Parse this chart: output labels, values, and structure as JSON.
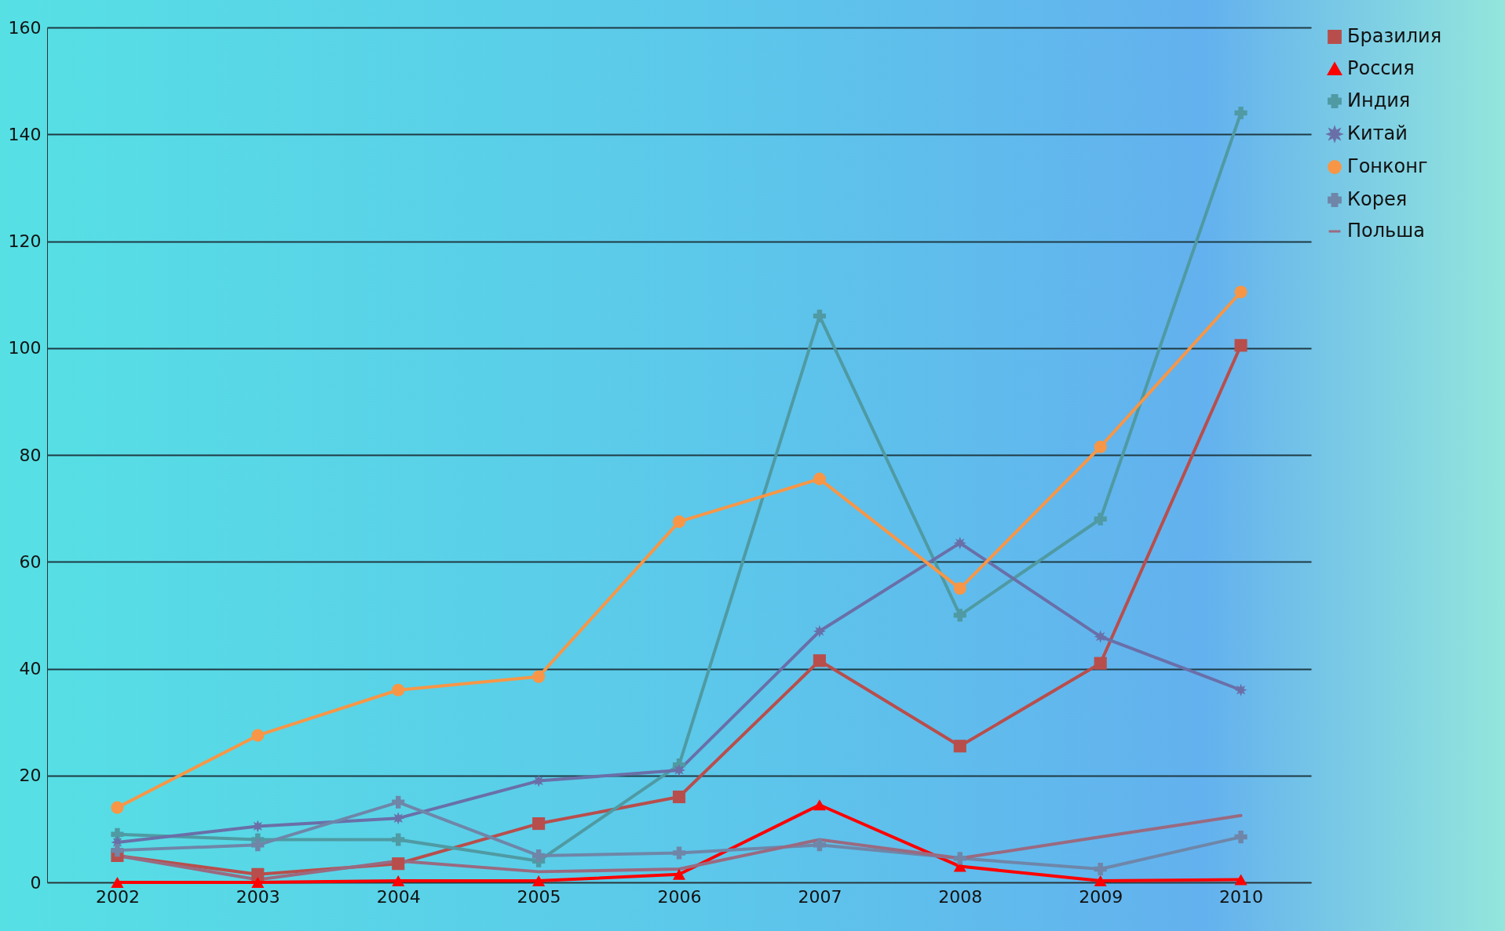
{
  "chart_data": {
    "type": "line",
    "categories": [
      "2002",
      "2003",
      "2004",
      "2005",
      "2006",
      "2007",
      "2008",
      "2009",
      "2010"
    ],
    "ylim": [
      0,
      160
    ],
    "yticks": [
      0,
      20,
      40,
      60,
      80,
      100,
      120,
      140,
      160
    ],
    "grid": "y",
    "legend": "right",
    "series": [
      {
        "name": "Бразилия",
        "color": "#b84e4c",
        "marker": "square",
        "values": [
          5,
          1.5,
          3.5,
          11,
          16,
          41.5,
          25.5,
          41,
          100.5
        ]
      },
      {
        "name": "Россия",
        "color": "#ff0000",
        "marker": "triangle",
        "values": [
          0,
          0,
          0.3,
          0.3,
          1.5,
          14.5,
          3,
          0.3,
          0.5
        ]
      },
      {
        "name": "Индия",
        "color": "#4f9aa3",
        "marker": "cross",
        "values": [
          9,
          8,
          8,
          4,
          22,
          106,
          50,
          68,
          144
        ]
      },
      {
        "name": "Китай",
        "color": "#6a6fa8",
        "marker": "star",
        "values": [
          7.5,
          10.5,
          12,
          19,
          21,
          47,
          63.5,
          46,
          36
        ]
      },
      {
        "name": "Гонконг",
        "color": "#f79646",
        "marker": "circle",
        "values": [
          14,
          27.5,
          36,
          38.5,
          67.5,
          75.5,
          55,
          81.5,
          110.5
        ]
      },
      {
        "name": "Корея",
        "color": "#6f86a8",
        "marker": "cross",
        "values": [
          6,
          7,
          15,
          5,
          5.5,
          7,
          4.5,
          2.5,
          8.5
        ]
      },
      {
        "name": "Польша",
        "color": "#9a6a80",
        "marker": "none",
        "values": [
          5,
          0.5,
          4,
          2,
          2.5,
          8,
          4.5,
          8.5,
          12.5
        ]
      }
    ]
  }
}
